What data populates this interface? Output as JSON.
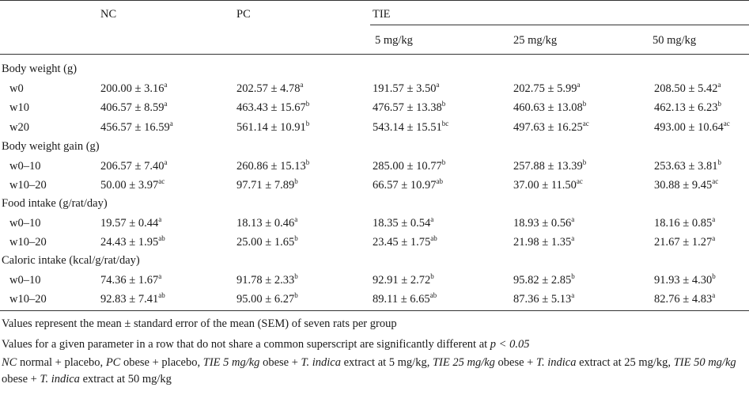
{
  "headers": {
    "col1": "NC",
    "col2": "PC",
    "group": "TIE",
    "sub": [
      "5 mg/kg",
      "25 mg/kg",
      "50 mg/kg"
    ]
  },
  "sections": [
    {
      "label": "Body weight (g)",
      "rows": [
        {
          "label": "w0",
          "cells": [
            [
              "200.00 ± 3.16",
              "a"
            ],
            [
              "202.57 ± 4.78",
              "a"
            ],
            [
              "191.57 ± 3.50",
              "a"
            ],
            [
              "202.75 ± 5.99",
              "a"
            ],
            [
              "208.50 ± 5.42",
              "a"
            ]
          ]
        },
        {
          "label": "w10",
          "cells": [
            [
              "406.57 ± 8.59",
              "a"
            ],
            [
              "463.43 ± 15.67",
              "b"
            ],
            [
              "476.57 ± 13.38",
              "b"
            ],
            [
              "460.63 ± 13.08",
              "b"
            ],
            [
              "462.13 ± 6.23",
              "b"
            ]
          ]
        },
        {
          "label": "w20",
          "cells": [
            [
              "456.57 ± 16.59",
              "a"
            ],
            [
              "561.14 ± 10.91",
              "b"
            ],
            [
              "543.14 ± 15.51",
              "bc"
            ],
            [
              "497.63 ± 16.25",
              "ac"
            ],
            [
              "493.00 ± 10.64",
              "ac"
            ]
          ]
        }
      ]
    },
    {
      "label": "Body weight gain (g)",
      "rows": [
        {
          "label": "w0–10",
          "cells": [
            [
              "206.57 ± 7.40",
              "a"
            ],
            [
              "260.86 ± 15.13",
              "b"
            ],
            [
              "285.00 ± 10.77",
              "b"
            ],
            [
              "257.88 ± 13.39",
              "b"
            ],
            [
              "253.63 ± 3.81",
              "b"
            ]
          ]
        },
        {
          "label": "w10–20",
          "cells": [
            [
              "50.00 ± 3.97",
              "ac"
            ],
            [
              "97.71 ± 7.89",
              "b"
            ],
            [
              "66.57 ± 10.97",
              "ab"
            ],
            [
              "37.00 ± 11.50",
              "ac"
            ],
            [
              "30.88 ± 9.45",
              "ac"
            ]
          ]
        }
      ]
    },
    {
      "label": "Food intake (g/rat/day)",
      "rows": [
        {
          "label": "w0–10",
          "cells": [
            [
              "19.57 ± 0.44",
              "a"
            ],
            [
              "18.13 ± 0.46",
              "a"
            ],
            [
              "18.35 ± 0.54",
              "a"
            ],
            [
              "18.93 ± 0.56",
              "a"
            ],
            [
              "18.16 ± 0.85",
              "a"
            ]
          ]
        },
        {
          "label": "w10–20",
          "cells": [
            [
              "24.43 ± 1.95",
              "ab"
            ],
            [
              "25.00 ± 1.65",
              "b"
            ],
            [
              "23.45 ± 1.75",
              "ab"
            ],
            [
              "21.98 ± 1.35",
              "a"
            ],
            [
              "21.67 ± 1.27",
              "a"
            ]
          ]
        }
      ]
    },
    {
      "label": "Caloric intake (kcal/g/rat/day)",
      "rows": [
        {
          "label": "w0–10",
          "cells": [
            [
              "74.36 ± 1.67",
              "a"
            ],
            [
              "91.78 ± 2.33",
              "b"
            ],
            [
              "92.91 ± 2.72",
              "b"
            ],
            [
              "95.82 ± 2.85",
              "b"
            ],
            [
              "91.93 ± 4.30",
              "b"
            ]
          ]
        },
        {
          "label": "w10–20",
          "cells": [
            [
              "92.83 ± 7.41",
              "ab"
            ],
            [
              "95.00 ± 6.27",
              "b"
            ],
            [
              "89.11 ± 6.65",
              "ab"
            ],
            [
              "87.36 ± 5.13",
              "a"
            ],
            [
              "82.76 ± 4.83",
              "a"
            ]
          ]
        }
      ]
    }
  ],
  "footnotes": {
    "note1": "Values represent the mean ± standard error of the mean (SEM) of seven rats per group",
    "note2_text": "Values for a given parameter in a row that do not share a common superscript are significantly different at ",
    "note2_math": "p < 0.05",
    "abbrev": [
      {
        "abbr": "NC",
        "text": " normal + placebo, "
      },
      {
        "abbr": "PC",
        "text": " obese + placebo, "
      },
      {
        "abbr": "TIE 5 mg/kg",
        "text": " obese + ",
        "species": "T. indica",
        "tail": " extract at 5 mg/kg, "
      },
      {
        "abbr": "TIE 25 mg/kg",
        "text": " obese + ",
        "species": "T. indica",
        "tail": " extract at 25 mg/kg, "
      },
      {
        "abbr": "TIE 50 mg/kg",
        "text": " obese + ",
        "species": "T. indica",
        "tail": " extract at 50 mg/kg"
      }
    ]
  }
}
